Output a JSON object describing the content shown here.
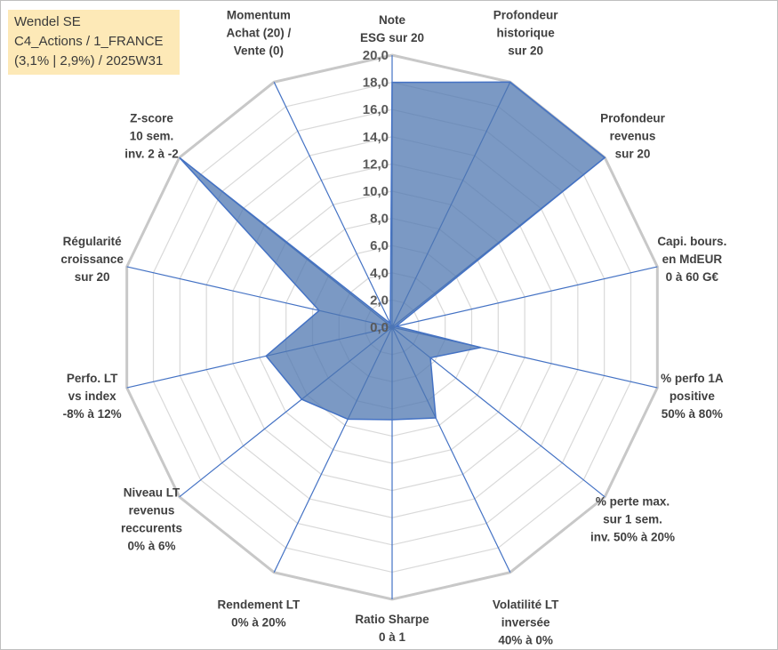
{
  "title_box": {
    "line1": "Wendel SE",
    "line2": "C4_Actions / 1_FRANCE",
    "line3": "(3,1% | 2,9%) / 2025W31",
    "background": "#fde9b7"
  },
  "colors": {
    "fill": "#4f77b0",
    "stroke": "#4472c4",
    "grid": "#d9d9d9",
    "ring": "#c8c8c8"
  },
  "chart_data": {
    "type": "radar",
    "rmin": 0,
    "rmax": 20,
    "rstep": 2,
    "tick_labels": [
      "0,0",
      "2,0",
      "4,0",
      "6,0",
      "8,0",
      "10,0",
      "12,0",
      "14,0",
      "16,0",
      "18,0",
      "20,0"
    ],
    "axes": [
      {
        "label": [
          "Note",
          "ESG sur 20"
        ],
        "value": 18
      },
      {
        "label": [
          "Profondeur",
          "historique",
          "sur 20"
        ],
        "value": 20
      },
      {
        "label": [
          "Profondeur",
          "revenus",
          "sur 20"
        ],
        "value": 20
      },
      {
        "label": [
          "Capi. bours.",
          "en MdEUR",
          "0 à 60 G€"
        ],
        "value": 0.3
      },
      {
        "label": [
          "% perfo 1A",
          "positive",
          "50% à 80%"
        ],
        "value": 6.7
      },
      {
        "label": [
          "% perte max.",
          "sur 1 sem.",
          "inv. 50% à 20%"
        ],
        "value": 3.6
      },
      {
        "label": [
          "Volatilité LT",
          "inversée",
          "40% à 0%"
        ],
        "value": 7.4
      },
      {
        "label": [
          "Ratio Sharpe",
          "0 à 1"
        ],
        "value": 6.8
      },
      {
        "label": [
          "Rendement LT",
          "0% à 20%"
        ],
        "value": 7.5
      },
      {
        "label": [
          "Niveau LT",
          "revenus",
          "reccurents",
          "0% à 6%"
        ],
        "value": 8.5
      },
      {
        "label": [
          "Perfo. LT",
          "vs index",
          "-8% à 12%"
        ],
        "value": 9.5
      },
      {
        "label": [
          "Régularité",
          "croissance",
          "sur 20"
        ],
        "value": 5.5
      },
      {
        "label": [
          "Z-score",
          "10 sem.",
          "inv. 2 à -2"
        ],
        "value": 20
      },
      {
        "label": [
          "Momentum",
          "Achat (20) /",
          "Vente (0)"
        ],
        "value": 0.3
      }
    ]
  }
}
